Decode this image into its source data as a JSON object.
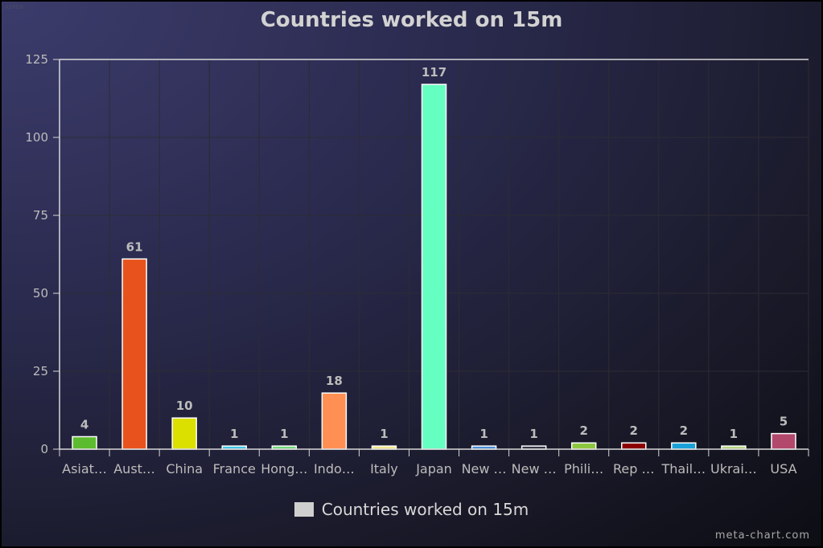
{
  "chart_data": {
    "type": "bar",
    "title": "Countries worked on 15m",
    "categories": [
      "Asiat…",
      "Aust…",
      "China",
      "France",
      "Hong…",
      "Indo…",
      "Italy",
      "Japan",
      "New …",
      "New …",
      "Phili…",
      "Rep …",
      "Thail…",
      "Ukrai…",
      "USA"
    ],
    "series": [
      {
        "name": "Countries worked on 15m",
        "values": [
          4,
          61,
          10,
          1,
          1,
          18,
          1,
          117,
          1,
          1,
          2,
          2,
          2,
          1,
          5
        ],
        "colors": [
          "#5dbb2f",
          "#e8531d",
          "#dbe000",
          "#3fc6e8",
          "#72d97a",
          "#ff8f53",
          "#f5e88a",
          "#66ffc2",
          "#4c8fd6",
          "#383848",
          "#8dc63f",
          "#8b0000",
          "#1ba1d8",
          "#b8d480",
          "#b2486c"
        ]
      }
    ],
    "data_labels": [
      "4",
      "61",
      "10",
      "1",
      "1",
      "18",
      "1",
      "117",
      "1",
      "1",
      "2",
      "2",
      "2",
      "1",
      "5"
    ],
    "yticks": [
      "0",
      "25",
      "50",
      "75",
      "100",
      "125"
    ],
    "ylim": [
      0,
      125
    ],
    "xlabel": "",
    "ylabel": "",
    "grid": true,
    "legend": "bottom-center"
  },
  "legend_label": "Countries worked on 15m",
  "watermark": "meta-chart.com",
  "corner_tag": "ASPEN",
  "colors": {
    "axis": "#d8d8d8",
    "grid": "#2c2c34",
    "label": "#bcbcbc",
    "bar_stroke": "#ffffff"
  }
}
